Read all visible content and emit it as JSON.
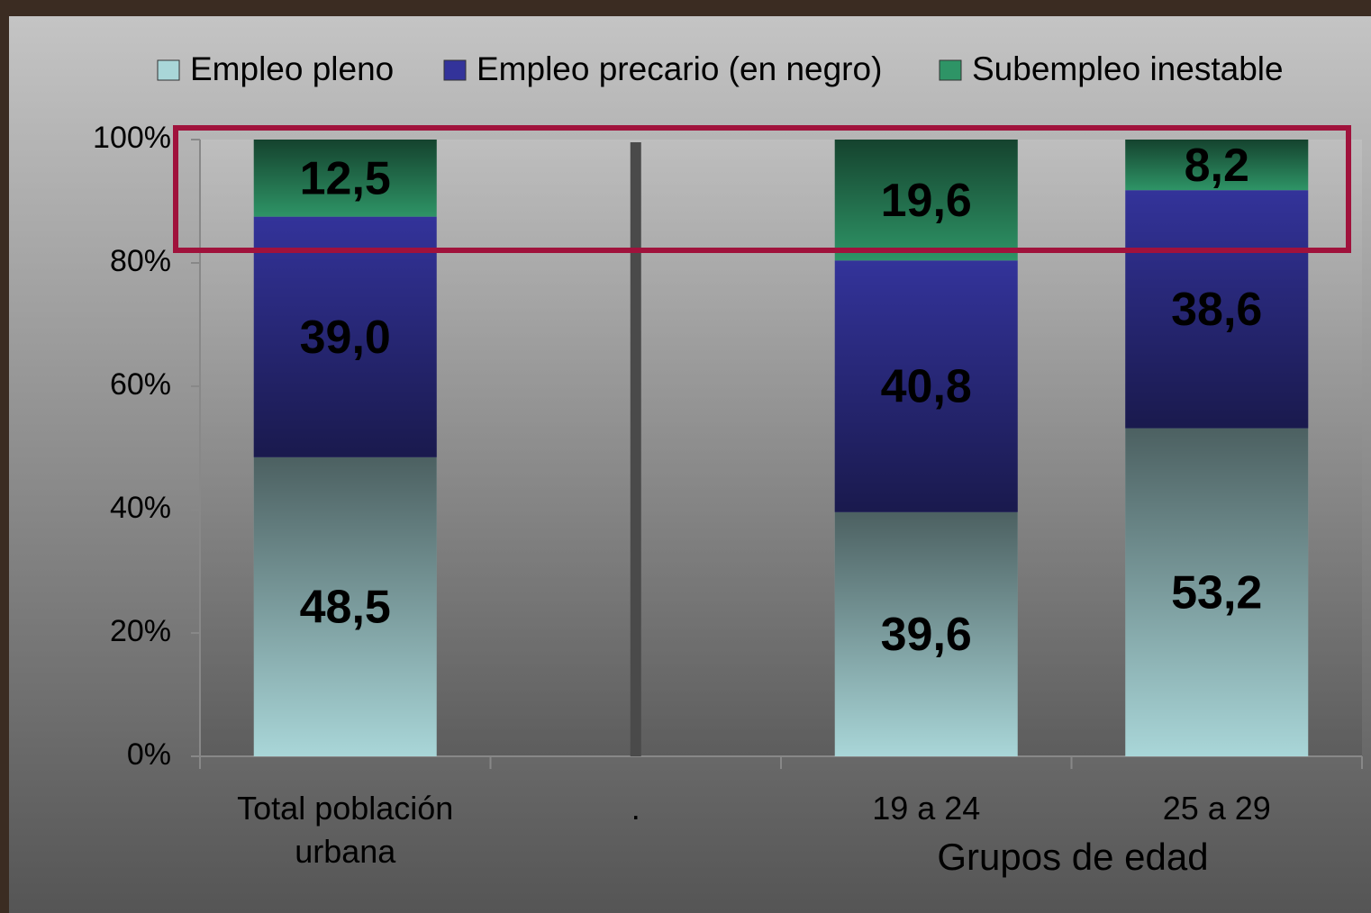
{
  "chart_data": {
    "type": "stacked_bar",
    "categories": [
      "Total población urbana",
      ".",
      "19 a 24",
      "25 a 29"
    ],
    "x_label": "Grupos de edad",
    "series": [
      {
        "name": "Empleo pleno",
        "color": "#a9d6d8",
        "values": [
          48.5,
          null,
          39.6,
          53.2
        ],
        "value_labels": [
          "48,5",
          null,
          "39,6",
          "53,2"
        ]
      },
      {
        "name": "Empleo precario (en negro)",
        "color": "#33339a",
        "values": [
          39.0,
          null,
          40.8,
          38.6
        ],
        "value_labels": [
          "39,0",
          null,
          "40,8",
          "38,6"
        ]
      },
      {
        "name": "Subempleo inestable",
        "color": "#2e9466",
        "values": [
          12.5,
          null,
          19.6,
          8.2
        ],
        "value_labels": [
          "12,5",
          null,
          "19,6",
          "8,2"
        ]
      }
    ],
    "ylim": [
      0,
      100
    ],
    "yticks": [
      {
        "value": 0,
        "label": "0%"
      },
      {
        "value": 20,
        "label": "20%"
      },
      {
        "value": 40,
        "label": "40%"
      },
      {
        "value": 60,
        "label": "60%"
      },
      {
        "value": 80,
        "label": "80%"
      },
      {
        "value": 100,
        "label": "100%"
      }
    ]
  }
}
